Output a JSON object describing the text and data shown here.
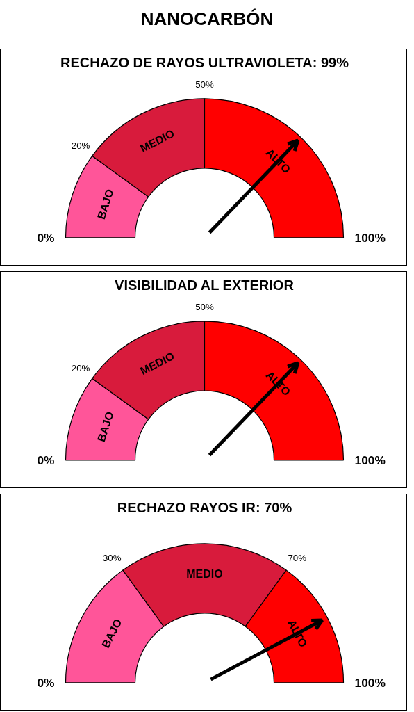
{
  "chart_data": [
    {
      "type": "other",
      "title": "NANOCARBÓN"
    },
    {
      "type": "donut",
      "title": "RECHAZO DE RAYOS ULTRAVIOLETA: 99%",
      "categories": [
        "BAJO",
        "MEDIO",
        "ALTO"
      ],
      "values": [
        20,
        30,
        50
      ],
      "colors": [
        "#ff5599",
        "#d81b3c",
        "#ff0000"
      ],
      "needle": "ALTO",
      "annotations": [
        "0%",
        "20%",
        "50%",
        "100%"
      ]
    },
    {
      "type": "donut",
      "title": "VISIBILIDAD AL EXTERIOR",
      "categories": [
        "BAJO",
        "MEDIO",
        "ALTO"
      ],
      "values": [
        20,
        30,
        50
      ],
      "colors": [
        "#ff5599",
        "#d81b3c",
        "#ff0000"
      ],
      "needle": "ALTO",
      "annotations": [
        "0%",
        "20%",
        "50%",
        "100%"
      ]
    },
    {
      "type": "donut",
      "title": "RECHAZO RAYOS IR: 70%",
      "categories": [
        "BAJO",
        "MEDIO",
        "ALTO"
      ],
      "values": [
        30,
        40,
        30
      ],
      "colors": [
        "#ff5599",
        "#d81b3c",
        "#ff0000"
      ],
      "needle": "ALTO",
      "annotations": [
        "0%",
        "30%",
        "70%",
        "100%"
      ]
    }
  ]
}
